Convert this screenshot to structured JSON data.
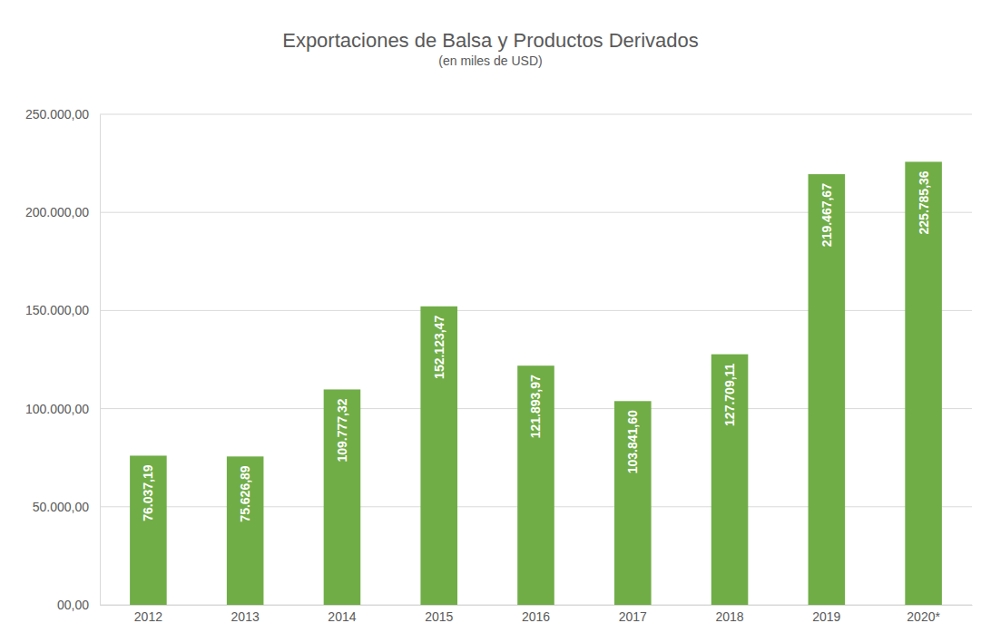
{
  "chart_data": {
    "type": "bar",
    "title": "Exportaciones de Balsa y Productos Derivados",
    "subtitle": "(en miles de USD)",
    "categories": [
      "2012",
      "2013",
      "2014",
      "2015",
      "2016",
      "2017",
      "2018",
      "2019",
      "2020*"
    ],
    "values": [
      76037.19,
      75626.89,
      109777.32,
      152123.47,
      121893.97,
      103841.6,
      127709.11,
      219467.67,
      225785.36
    ],
    "value_labels": [
      "76.037,19",
      "75.626,89",
      "109.777,32",
      "152.123,47",
      "121.893,97",
      "103.841,60",
      "127.709,11",
      "219.467,67",
      "225.785,36"
    ],
    "color": "#70ad47",
    "ylim": [
      0,
      250000
    ],
    "yticks": [
      {
        "value": 0,
        "label": "00,00"
      },
      {
        "value": 50000,
        "label": "50.000,00"
      },
      {
        "value": 100000,
        "label": "100.000,00"
      },
      {
        "value": 150000,
        "label": "150.000,00"
      },
      {
        "value": 200000,
        "label": "200.000,00"
      },
      {
        "value": 250000,
        "label": "250.000,00"
      }
    ],
    "grid": true,
    "data_labels": true
  }
}
